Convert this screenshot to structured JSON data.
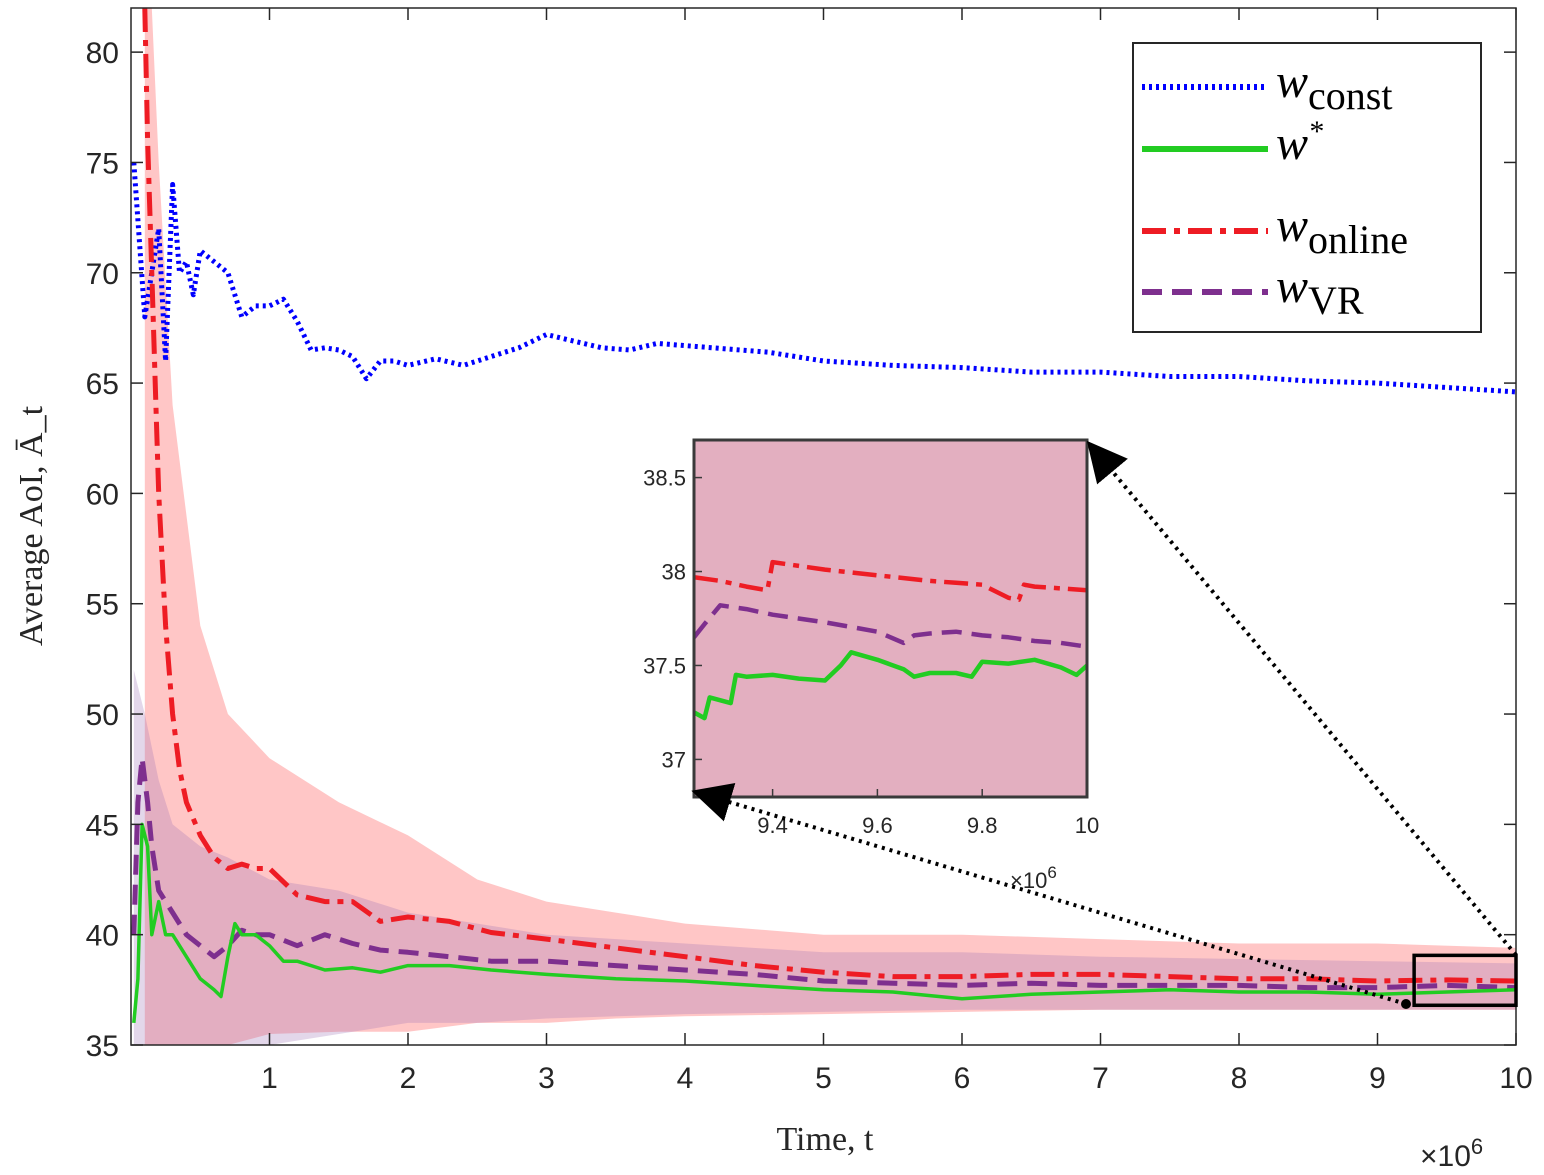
{
  "chart_data": {
    "type": "line",
    "title": "",
    "xlabel": "Time, t",
    "ylabel": "Average AoI, Ā_t",
    "x_multiplier": "×10^6",
    "x_multiplier_base": "×10",
    "x_multiplier_exp": "6",
    "xlim": [
      0,
      10
    ],
    "ylim": [
      35,
      82
    ],
    "xticks": [
      "1",
      "2",
      "3",
      "4",
      "5",
      "6",
      "7",
      "8",
      "9",
      "10"
    ],
    "yticks": [
      "35",
      "40",
      "45",
      "50",
      "55",
      "60",
      "65",
      "70",
      "75",
      "80"
    ],
    "legend_position": "top-right",
    "series": [
      {
        "name": "w_const",
        "label_main": "w",
        "label_sub": "const",
        "label_sup": "",
        "color": "#0000ff",
        "style": "dotted",
        "x": [
          0.02,
          0.1,
          0.2,
          0.25,
          0.3,
          0.35,
          0.4,
          0.45,
          0.5,
          0.6,
          0.7,
          0.8,
          0.9,
          1.0,
          1.1,
          1.2,
          1.3,
          1.4,
          1.5,
          1.6,
          1.7,
          1.8,
          1.9,
          2.0,
          2.2,
          2.4,
          2.6,
          2.8,
          3.0,
          3.2,
          3.4,
          3.6,
          3.8,
          4.0,
          4.2,
          4.4,
          4.6,
          4.8,
          5.0,
          5.5,
          6.0,
          6.5,
          7.0,
          7.5,
          8.0,
          8.5,
          9.0,
          9.5,
          10.0
        ],
        "y": [
          75,
          68,
          72,
          66,
          74,
          70,
          70.5,
          69,
          71,
          70.5,
          70,
          68,
          68.5,
          68.5,
          68.8,
          67.8,
          66.5,
          66.6,
          66.5,
          66.2,
          65.2,
          66,
          66,
          65.8,
          66.1,
          65.8,
          66.2,
          66.6,
          67.2,
          66.9,
          66.6,
          66.5,
          66.8,
          66.7,
          66.6,
          66.5,
          66.4,
          66.2,
          66,
          65.8,
          65.7,
          65.5,
          65.5,
          65.3,
          65.3,
          65.1,
          65,
          64.8,
          64.6
        ]
      },
      {
        "name": "w*",
        "label_main": "w",
        "label_sub": "",
        "label_sup": "*",
        "color": "#22cc22",
        "style": "solid",
        "x": [
          0.02,
          0.05,
          0.08,
          0.12,
          0.15,
          0.2,
          0.25,
          0.3,
          0.4,
          0.5,
          0.6,
          0.65,
          0.7,
          0.75,
          0.8,
          0.9,
          1.0,
          1.1,
          1.2,
          1.4,
          1.6,
          1.8,
          2.0,
          2.3,
          2.6,
          3.0,
          3.5,
          4.0,
          4.5,
          5.0,
          5.5,
          6.0,
          6.5,
          7.0,
          7.5,
          8.0,
          8.5,
          9.0,
          9.5,
          10.0
        ],
        "y": [
          36,
          38,
          45,
          44,
          40,
          41.5,
          40,
          40,
          39,
          38,
          37.5,
          37.2,
          39,
          40.5,
          40,
          40,
          39.5,
          38.8,
          38.8,
          38.4,
          38.5,
          38.3,
          38.6,
          38.6,
          38.4,
          38.2,
          38,
          37.9,
          37.7,
          37.5,
          37.4,
          37.1,
          37.3,
          37.4,
          37.5,
          37.4,
          37.4,
          37.3,
          37.4,
          37.5
        ]
      },
      {
        "name": "w_online",
        "label_main": "w",
        "label_sub": "online",
        "label_sup": "",
        "color": "#ee1c24",
        "style": "dashdot",
        "x": [
          0.1,
          0.12,
          0.15,
          0.18,
          0.2,
          0.25,
          0.3,
          0.35,
          0.4,
          0.5,
          0.6,
          0.7,
          0.8,
          0.9,
          1.0,
          1.2,
          1.4,
          1.6,
          1.8,
          2.0,
          2.3,
          2.6,
          3.0,
          3.5,
          4.0,
          4.5,
          5.0,
          5.5,
          6.0,
          6.5,
          7.0,
          7.5,
          8.0,
          8.5,
          9.0,
          9.5,
          10.0
        ],
        "y": [
          82,
          76,
          70,
          64,
          60,
          54,
          50,
          47.5,
          46,
          44.5,
          43.5,
          43,
          43.2,
          43,
          43,
          41.8,
          41.5,
          41.5,
          40.6,
          40.8,
          40.6,
          40.1,
          39.8,
          39.4,
          39,
          38.6,
          38.3,
          38.1,
          38.1,
          38.2,
          38.2,
          38.1,
          38,
          38,
          37.9,
          37.95,
          37.9
        ]
      },
      {
        "name": "w_VR",
        "label_main": "w",
        "label_sub": "VR",
        "label_sup": "",
        "color": "#7e2f8e",
        "style": "dashed",
        "x": [
          0.02,
          0.05,
          0.08,
          0.12,
          0.15,
          0.2,
          0.25,
          0.3,
          0.4,
          0.5,
          0.6,
          0.7,
          0.8,
          0.9,
          1.0,
          1.2,
          1.4,
          1.6,
          1.8,
          2.0,
          2.3,
          2.6,
          3.0,
          3.5,
          4.0,
          4.5,
          5.0,
          5.5,
          6.0,
          6.5,
          7.0,
          7.5,
          8.0,
          8.5,
          9.0,
          9.5,
          10.0
        ],
        "y": [
          40,
          46,
          48,
          46,
          44,
          42,
          41.5,
          41,
          40,
          39.5,
          39,
          39.5,
          40.2,
          40,
          40,
          39.5,
          40,
          39.6,
          39.3,
          39.2,
          39,
          38.8,
          38.8,
          38.6,
          38.4,
          38.2,
          37.9,
          37.8,
          37.7,
          37.8,
          37.7,
          37.7,
          37.7,
          37.6,
          37.6,
          37.7,
          37.6
        ]
      }
    ],
    "bands": [
      {
        "series": "w_online",
        "color": "#ff7777",
        "opacity": 0.42,
        "x": [
          0.1,
          0.15,
          0.2,
          0.3,
          0.5,
          0.7,
          1.0,
          1.5,
          2.0,
          2.5,
          3.0,
          3.5,
          4.0,
          5.0,
          6.0,
          7.0,
          8.0,
          9.0,
          10.0
        ],
        "upper": [
          82,
          82,
          75,
          64,
          54,
          50,
          48,
          46,
          44.5,
          42.5,
          41.5,
          41,
          40.5,
          40,
          40,
          39.8,
          39.6,
          39.6,
          39.4
        ],
        "lower": [
          35,
          35,
          35,
          35,
          35,
          35,
          35.5,
          35.6,
          35.6,
          36,
          36,
          36.2,
          36.3,
          36.4,
          36.5,
          36.6,
          36.6,
          36.6,
          36.6
        ]
      },
      {
        "series": "w_VR",
        "color": "#9a6fb3",
        "opacity": 0.28,
        "x": [
          0.02,
          0.1,
          0.2,
          0.3,
          0.5,
          0.7,
          1.0,
          1.5,
          2.0,
          2.5,
          3.0,
          4.0,
          5.0,
          6.0,
          7.0,
          8.0,
          9.0,
          10.0
        ],
        "upper": [
          52,
          50,
          47,
          45,
          44,
          43.5,
          42.5,
          42,
          41,
          40.5,
          40,
          39.6,
          39.2,
          39.2,
          39,
          38.9,
          38.8,
          38.7
        ],
        "lower": [
          35,
          35,
          35,
          35,
          35,
          35,
          35,
          35.5,
          36,
          36,
          36.2,
          36.4,
          36.5,
          36.6,
          36.6,
          36.6,
          36.6,
          36.6
        ]
      }
    ],
    "inset": {
      "xlim": [
        9.25,
        10.0
      ],
      "ylim": [
        36.8,
        38.7
      ],
      "xticks": [
        "9.4",
        "9.6",
        "9.8",
        "10"
      ],
      "yticks": [
        "37",
        "37.5",
        "38",
        "38.5"
      ],
      "x_multiplier": "×10^6",
      "x_multiplier_base": "×10",
      "x_multiplier_exp": "6",
      "background": "#e3afc0",
      "zoom_box": {
        "x": [
          9.25,
          10.0
        ],
        "y": [
          36.8,
          38.7
        ]
      },
      "series": [
        {
          "name": "w_online",
          "color": "#ee1c24",
          "style": "dashdot",
          "x": [
            9.25,
            9.3,
            9.35,
            9.39,
            9.4,
            9.45,
            9.5,
            9.6,
            9.7,
            9.75,
            9.8,
            9.85,
            9.87,
            9.88,
            9.9,
            9.95,
            10.0
          ],
          "y": [
            37.97,
            37.95,
            37.92,
            37.9,
            38.05,
            38.03,
            38.01,
            37.98,
            37.95,
            37.94,
            37.93,
            37.86,
            37.85,
            37.93,
            37.92,
            37.91,
            37.9
          ]
        },
        {
          "name": "w_VR",
          "color": "#7e2f8e",
          "style": "dashed",
          "x": [
            9.25,
            9.27,
            9.3,
            9.35,
            9.4,
            9.5,
            9.6,
            9.65,
            9.67,
            9.7,
            9.75,
            9.8,
            9.85,
            9.9,
            9.95,
            10.0
          ],
          "y": [
            37.65,
            37.72,
            37.82,
            37.8,
            37.77,
            37.73,
            37.68,
            37.62,
            37.66,
            37.67,
            37.68,
            37.66,
            37.65,
            37.63,
            37.62,
            37.6
          ]
        },
        {
          "name": "w*",
          "color": "#22cc22",
          "style": "solid",
          "x": [
            9.25,
            9.27,
            9.28,
            9.32,
            9.33,
            9.35,
            9.4,
            9.45,
            9.5,
            9.53,
            9.55,
            9.6,
            9.65,
            9.67,
            9.7,
            9.75,
            9.78,
            9.8,
            9.85,
            9.9,
            9.95,
            9.98,
            10.0
          ],
          "y": [
            37.25,
            37.22,
            37.33,
            37.3,
            37.45,
            37.44,
            37.45,
            37.43,
            37.42,
            37.5,
            37.57,
            37.53,
            37.48,
            37.44,
            37.46,
            37.46,
            37.44,
            37.52,
            37.51,
            37.53,
            37.49,
            37.45,
            37.5
          ]
        }
      ]
    }
  }
}
